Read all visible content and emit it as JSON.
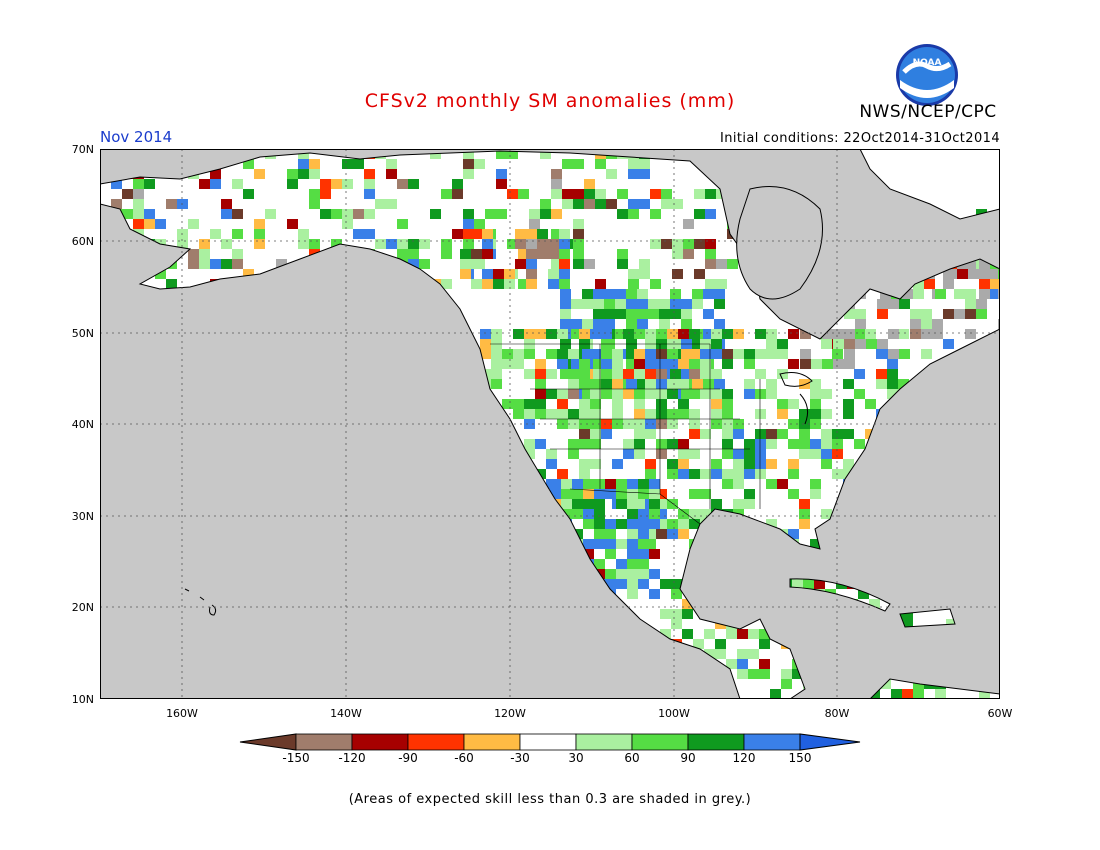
{
  "header": {
    "title": "CFSv2 monthly SM anomalies (mm)",
    "agency": "NWS/NCEP/CPC",
    "logo_text": "NOAA",
    "month": "Nov 2014",
    "initial_conditions": "Initial conditions: 22Oct2014-31Oct2014"
  },
  "axes": {
    "lat_labels": [
      "70N",
      "60N",
      "50N",
      "40N",
      "30N",
      "20N",
      "10N"
    ],
    "lon_labels": [
      "160W",
      "140W",
      "120W",
      "100W",
      "80W",
      "60W"
    ]
  },
  "colorbar": {
    "ticks": [
      "-150",
      "-120",
      "-90",
      "-60",
      "-30",
      "30",
      "60",
      "90",
      "120",
      "150"
    ],
    "colors": [
      "#6b3a2a",
      "#a07d6c",
      "#a60000",
      "#ff3300",
      "#ffbb44",
      "#ffffff",
      "#aaf0a0",
      "#55dd44",
      "#0f9a1f",
      "#3a80e8",
      "#2060e0"
    ]
  },
  "colors": {
    "ocean": "#c8c8c8",
    "land_base": "#ffffff",
    "skill_grey": "#aaaaaa"
  },
  "footnote": "(Areas of expected skill less than 0.3 are shaded in grey.)"
}
